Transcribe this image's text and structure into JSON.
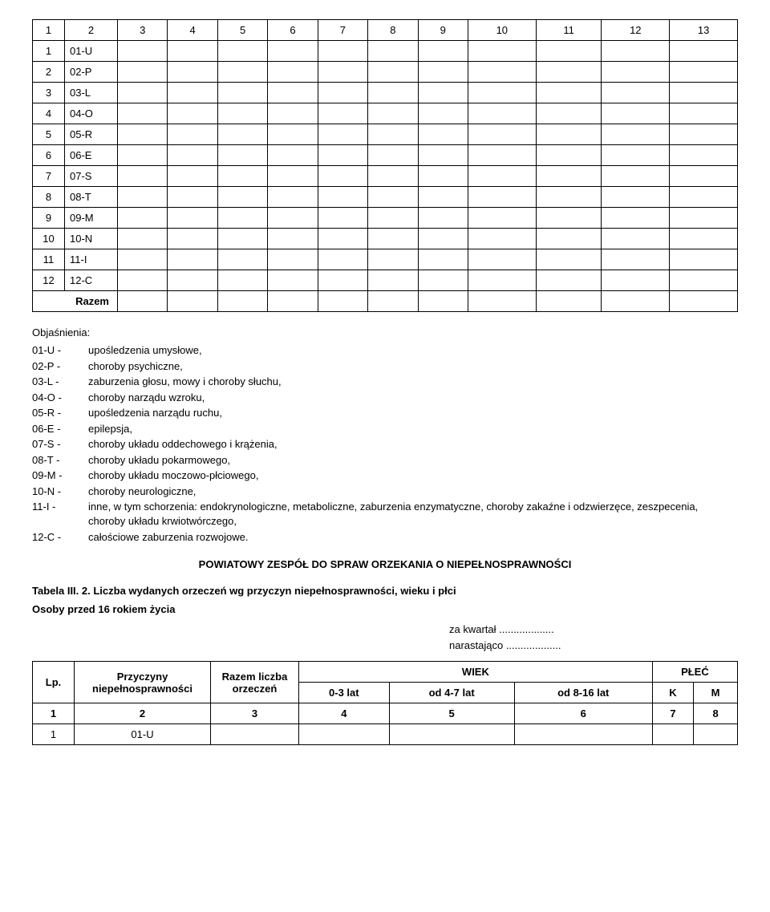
{
  "table1": {
    "header_nums": [
      "1",
      "2",
      "3",
      "4",
      "5",
      "6",
      "7",
      "8",
      "9",
      "10",
      "11",
      "12",
      "13"
    ],
    "rows": [
      {
        "n": "1",
        "code": "01-U"
      },
      {
        "n": "2",
        "code": "02-P"
      },
      {
        "n": "3",
        "code": "03-L"
      },
      {
        "n": "4",
        "code": "04-O"
      },
      {
        "n": "5",
        "code": "05-R"
      },
      {
        "n": "6",
        "code": "06-E"
      },
      {
        "n": "7",
        "code": "07-S"
      },
      {
        "n": "8",
        "code": "08-T"
      },
      {
        "n": "9",
        "code": "09-M"
      },
      {
        "n": "10",
        "code": "10-N"
      },
      {
        "n": "11",
        "code": "11-I"
      },
      {
        "n": "12",
        "code": "12-C"
      }
    ],
    "razem": "Razem"
  },
  "objasnienia_label": "Objaśnienia:",
  "defs": [
    {
      "code": "01-U -",
      "text": "upośledzenia umysłowe,"
    },
    {
      "code": "02-P -",
      "text": "choroby psychiczne,"
    },
    {
      "code": "03-L -",
      "text": "zaburzenia głosu, mowy i choroby słuchu,"
    },
    {
      "code": "04-O -",
      "text": "choroby narządu wzroku,"
    },
    {
      "code": "05-R -",
      "text": "upośledzenia narządu ruchu,"
    },
    {
      "code": "06-E -",
      "text": "epilepsja,"
    },
    {
      "code": "07-S -",
      "text": "choroby układu oddechowego i krążenia,"
    },
    {
      "code": "08-T -",
      "text": "choroby układu pokarmowego,"
    },
    {
      "code": "09-M -",
      "text": "choroby układu moczowo-płciowego,"
    },
    {
      "code": "10-N -",
      "text": "choroby neurologiczne,"
    },
    {
      "code": "11-I -",
      "text": "inne, w tym schorzenia: endokrynologiczne, metaboliczne, zaburzenia enzymatyczne, choroby zakaźne i odzwierzęce, zeszpecenia, choroby układu krwiotwórczego,"
    },
    {
      "code": "12-C -",
      "text": "całościowe zaburzenia rozwojowe."
    }
  ],
  "heading": "POWIATOWY ZESPÓŁ DO SPRAW ORZEKANIA O NIEPEŁNOSPRAWNOŚCI",
  "subtitle": "Tabela III. 2. Liczba wydanych orzeczeń wg przyczyn niepełnosprawności, wieku i płci",
  "osoby": "Osoby przed 16 rokiem życia",
  "za_kwartal": "za kwartał ...................",
  "narastajaco": "narastająco ...................",
  "table2": {
    "h_lp": "Lp.",
    "h_przyczyny": "Przyczyny niepełnosprawności",
    "h_razem": "Razem liczba orzeczeń",
    "h_wiek": "WIEK",
    "h_plec": "PŁEĆ",
    "h_03": "0-3 lat",
    "h_47": "od 4-7 lat",
    "h_816": "od 8-16 lat",
    "h_k": "K",
    "h_m": "M",
    "nums": [
      "1",
      "2",
      "3",
      "4",
      "5",
      "6",
      "7",
      "8"
    ],
    "row1_n": "1",
    "row1_code": "01-U"
  }
}
